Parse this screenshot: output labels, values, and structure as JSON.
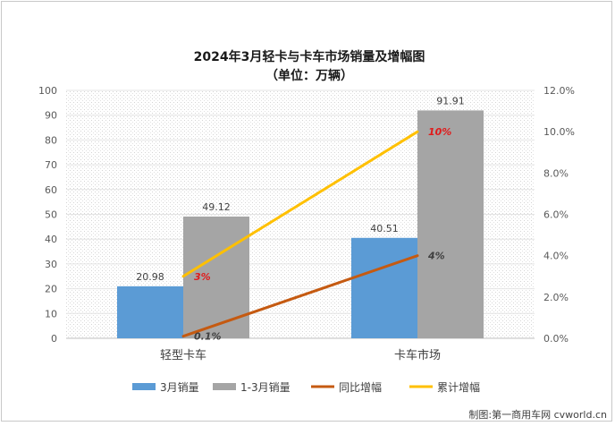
{
  "chart_data": {
    "type": "bar",
    "title": "2024年3月轻卡与卡车市场销量及增幅图",
    "subtitle": "（单位：万辆）",
    "categories": [
      "轻型卡车",
      "卡车市场"
    ],
    "series": [
      {
        "name": "3月销量",
        "kind": "bar",
        "axis": "left",
        "values": [
          20.98,
          40.51
        ],
        "labels": [
          "20.98",
          "40.51"
        ],
        "color": "#5b9bd5"
      },
      {
        "name": "1-3月销量",
        "kind": "bar",
        "axis": "left",
        "values": [
          49.12,
          91.91
        ],
        "labels": [
          "49.12",
          "91.91"
        ],
        "color": "#a5a5a5"
      },
      {
        "name": "同比增幅",
        "kind": "line",
        "axis": "right",
        "values": [
          0.1,
          4
        ],
        "labels": [
          "0.1%",
          "4%"
        ],
        "color": "#c55a11",
        "label_color": "#404040"
      },
      {
        "name": "累计增幅",
        "kind": "line",
        "axis": "right",
        "values": [
          3,
          10
        ],
        "labels": [
          "3%",
          "10%"
        ],
        "color": "#ffc000",
        "label_color": "#e01b1b"
      }
    ],
    "ylim": [
      0,
      100
    ],
    "y_ticks": [
      "0",
      "10",
      "20",
      "30",
      "40",
      "50",
      "60",
      "70",
      "80",
      "90",
      "100"
    ],
    "y2lim": [
      0,
      12
    ],
    "y2_ticks": [
      "0.0%",
      "2.0%",
      "4.0%",
      "6.0%",
      "8.0%",
      "10.0%",
      "12.0%"
    ],
    "grid": true,
    "legend_position": "bottom"
  },
  "credit": "制图:第一商用车网 cvworld.cn"
}
